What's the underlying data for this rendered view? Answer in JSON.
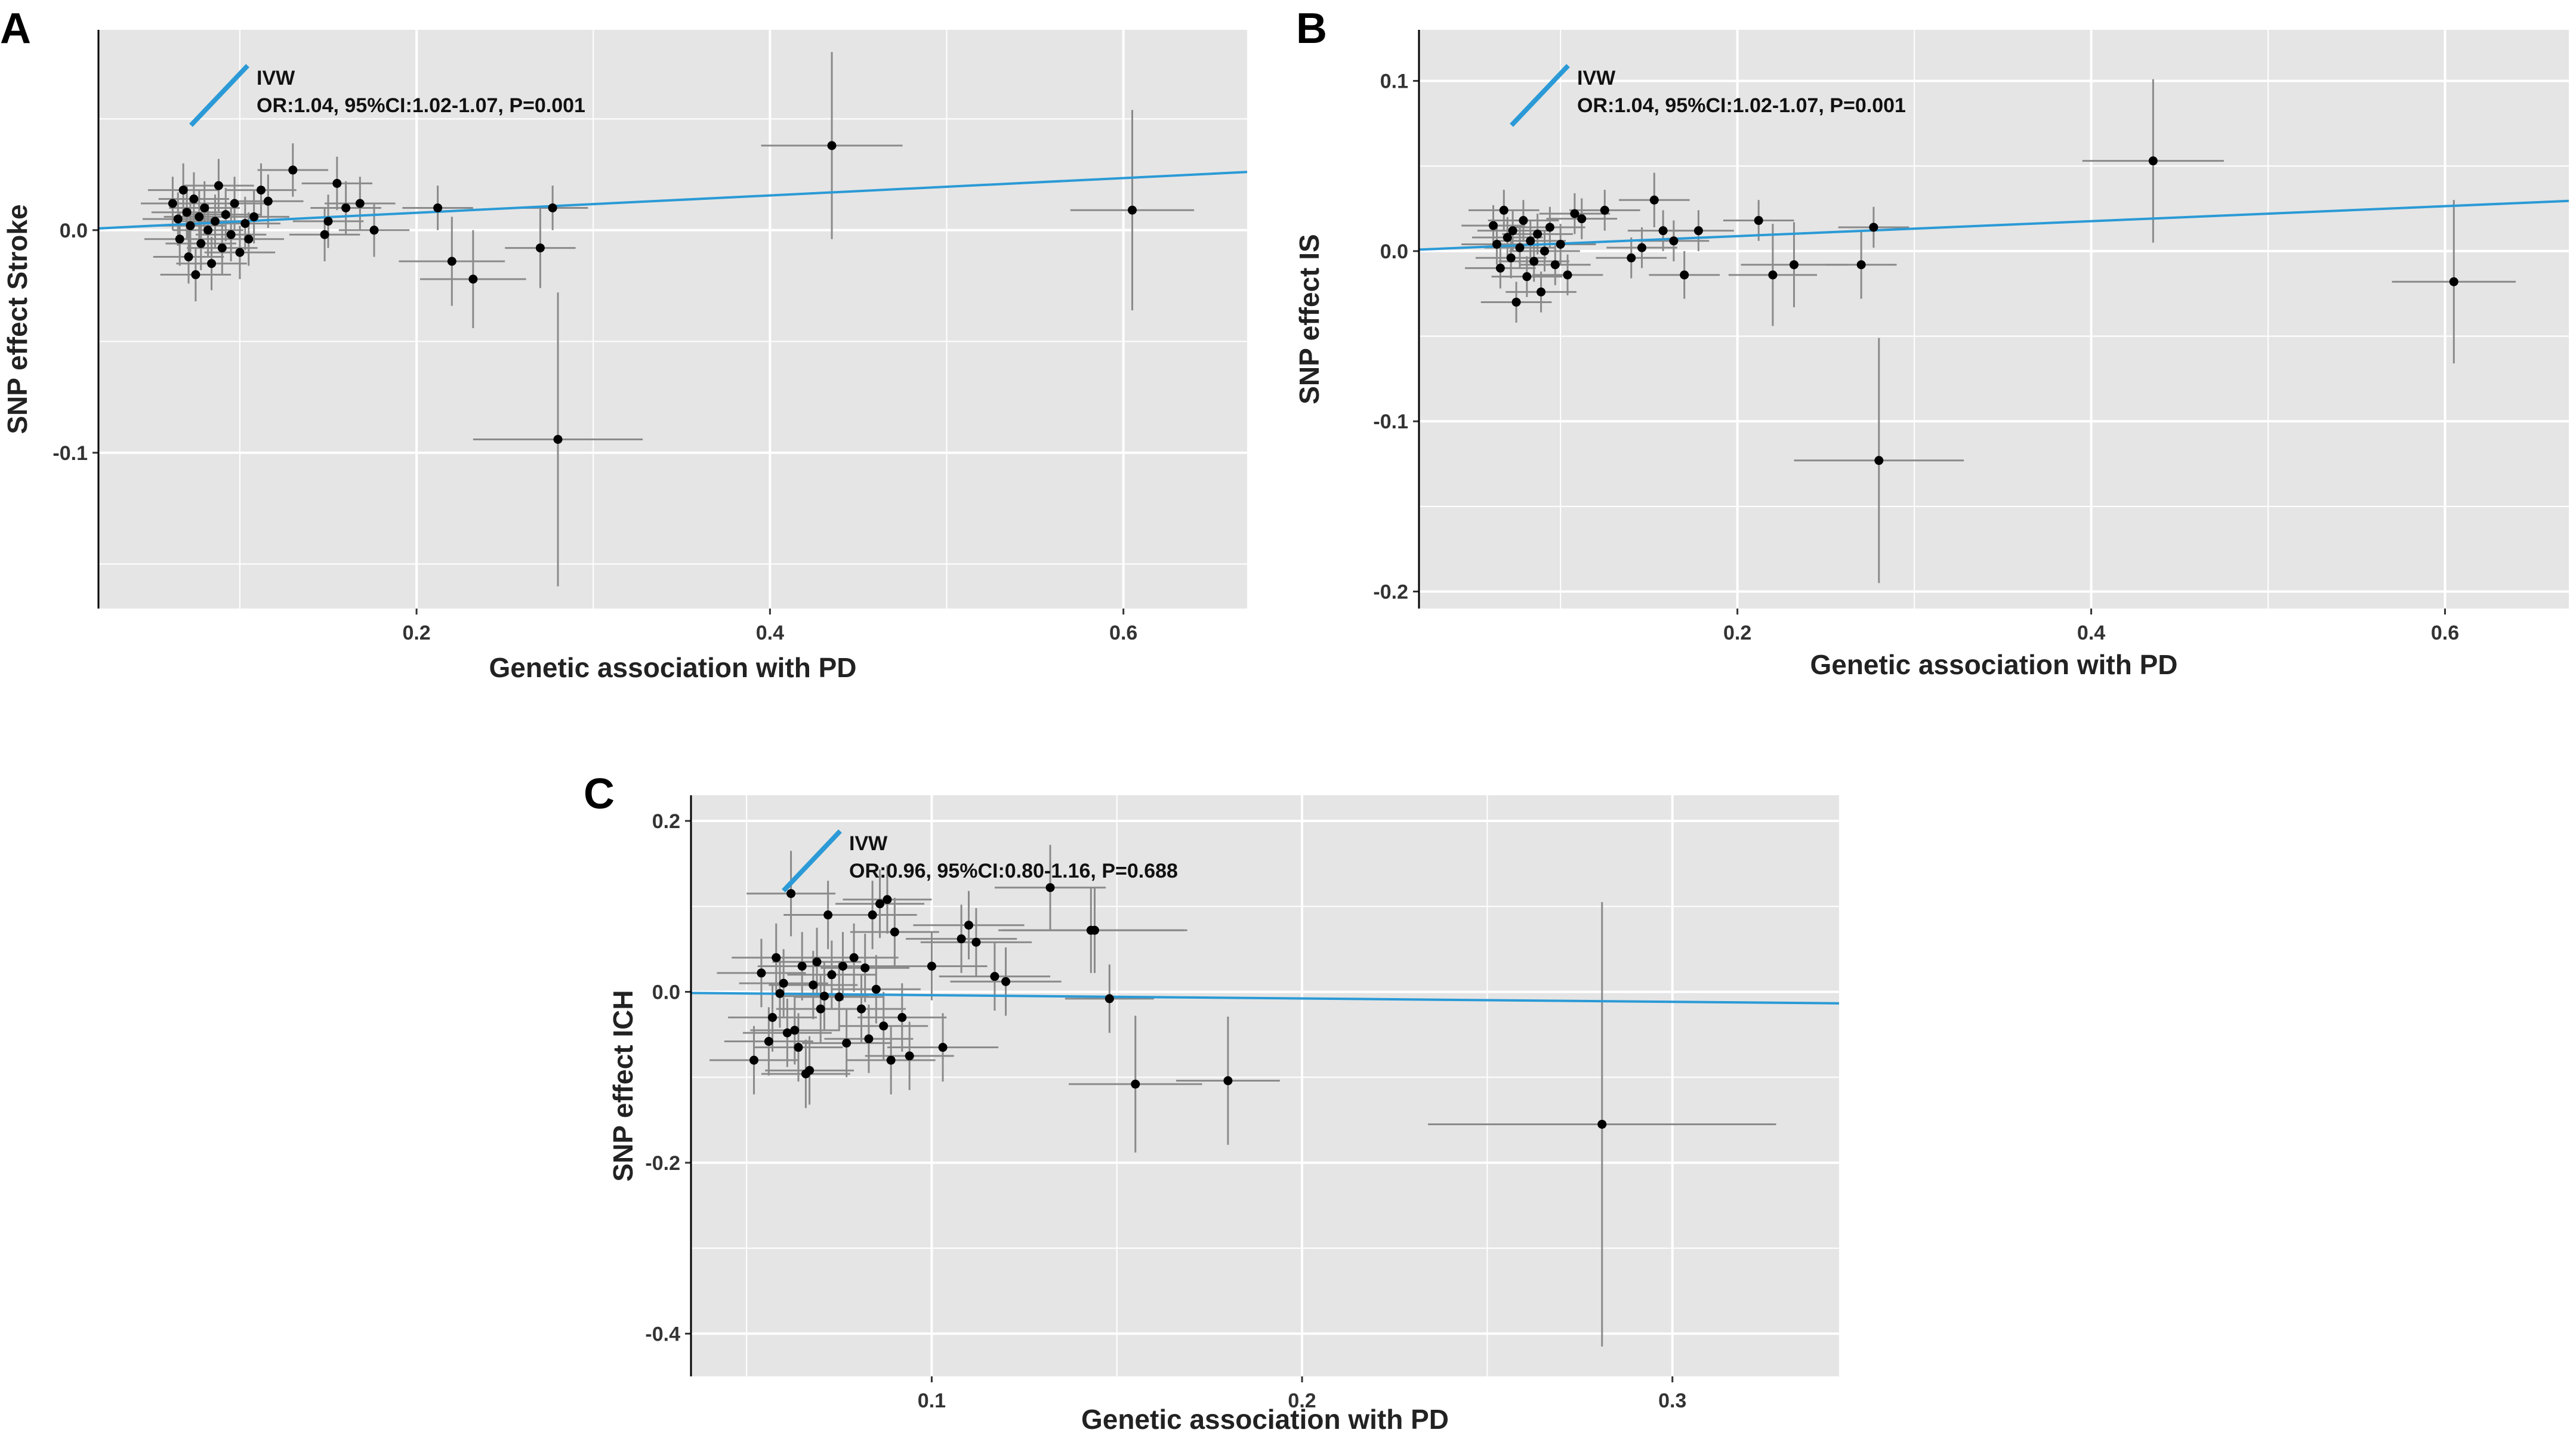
{
  "figure": {
    "panels": [
      "A",
      "B",
      "C"
    ]
  },
  "colors": {
    "panel_bg": "#e5e5e5",
    "grid": "#ffffff",
    "ivw_line": "#2b9ad6",
    "point": "#000000",
    "error_bar": "#8a8a8a"
  },
  "chart_data": [
    {
      "panel": "A",
      "type": "scatter",
      "xlabel": "Genetic association with PD",
      "ylabel": "SNP effect Stroke",
      "xlim": [
        0.02,
        0.67
      ],
      "ylim": [
        -0.17,
        0.09
      ],
      "xticks": [
        0.2,
        0.4,
        0.6
      ],
      "yticks": [
        0.0,
        -0.1
      ],
      "xtick_labels": [
        "0.2",
        "0.4",
        "0.6"
      ],
      "ytick_labels": [
        "0.0",
        "-0.1"
      ],
      "legend": {
        "method": "IVW",
        "stats": "OR:1.04, 95%CI:1.02-1.07, P=0.001"
      },
      "ivw_slope": 0.039,
      "points": [
        {
          "x": 0.062,
          "y": 0.012,
          "xe": 0.018,
          "ye": 0.012
        },
        {
          "x": 0.065,
          "y": 0.005,
          "xe": 0.02,
          "ye": 0.012
        },
        {
          "x": 0.066,
          "y": -0.004,
          "xe": 0.02,
          "ye": 0.012
        },
        {
          "x": 0.068,
          "y": 0.018,
          "xe": 0.02,
          "ye": 0.012
        },
        {
          "x": 0.07,
          "y": 0.008,
          "xe": 0.02,
          "ye": 0.012
        },
        {
          "x": 0.071,
          "y": -0.012,
          "xe": 0.02,
          "ye": 0.012
        },
        {
          "x": 0.072,
          "y": 0.002,
          "xe": 0.02,
          "ye": 0.012
        },
        {
          "x": 0.074,
          "y": 0.014,
          "xe": 0.02,
          "ye": 0.012
        },
        {
          "x": 0.075,
          "y": -0.02,
          "xe": 0.02,
          "ye": 0.012
        },
        {
          "x": 0.077,
          "y": 0.006,
          "xe": 0.02,
          "ye": 0.012
        },
        {
          "x": 0.078,
          "y": -0.006,
          "xe": 0.02,
          "ye": 0.012
        },
        {
          "x": 0.08,
          "y": 0.01,
          "xe": 0.02,
          "ye": 0.012
        },
        {
          "x": 0.082,
          "y": 0.0,
          "xe": 0.02,
          "ye": 0.012
        },
        {
          "x": 0.084,
          "y": -0.015,
          "xe": 0.02,
          "ye": 0.012
        },
        {
          "x": 0.086,
          "y": 0.004,
          "xe": 0.02,
          "ye": 0.012
        },
        {
          "x": 0.088,
          "y": 0.02,
          "xe": 0.02,
          "ye": 0.012
        },
        {
          "x": 0.09,
          "y": -0.008,
          "xe": 0.02,
          "ye": 0.012
        },
        {
          "x": 0.092,
          "y": 0.007,
          "xe": 0.02,
          "ye": 0.012
        },
        {
          "x": 0.095,
          "y": -0.002,
          "xe": 0.02,
          "ye": 0.012
        },
        {
          "x": 0.097,
          "y": 0.012,
          "xe": 0.02,
          "ye": 0.012
        },
        {
          "x": 0.1,
          "y": -0.01,
          "xe": 0.02,
          "ye": 0.012
        },
        {
          "x": 0.103,
          "y": 0.003,
          "xe": 0.02,
          "ye": 0.012
        },
        {
          "x": 0.105,
          "y": -0.004,
          "xe": 0.02,
          "ye": 0.012
        },
        {
          "x": 0.108,
          "y": 0.006,
          "xe": 0.02,
          "ye": 0.012
        },
        {
          "x": 0.112,
          "y": 0.018,
          "xe": 0.02,
          "ye": 0.012
        },
        {
          "x": 0.116,
          "y": 0.013,
          "xe": 0.02,
          "ye": 0.012
        },
        {
          "x": 0.13,
          "y": 0.027,
          "xe": 0.02,
          "ye": 0.012
        },
        {
          "x": 0.148,
          "y": -0.002,
          "xe": 0.02,
          "ye": 0.012
        },
        {
          "x": 0.15,
          "y": 0.004,
          "xe": 0.02,
          "ye": 0.012
        },
        {
          "x": 0.155,
          "y": 0.021,
          "xe": 0.02,
          "ye": 0.012
        },
        {
          "x": 0.16,
          "y": 0.01,
          "xe": 0.02,
          "ye": 0.012
        },
        {
          "x": 0.168,
          "y": 0.012,
          "xe": 0.02,
          "ye": 0.012
        },
        {
          "x": 0.176,
          "y": 0.0,
          "xe": 0.02,
          "ye": 0.012
        },
        {
          "x": 0.212,
          "y": 0.01,
          "xe": 0.02,
          "ye": 0.01
        },
        {
          "x": 0.22,
          "y": -0.014,
          "xe": 0.03,
          "ye": 0.02
        },
        {
          "x": 0.232,
          "y": -0.022,
          "xe": 0.03,
          "ye": 0.022
        },
        {
          "x": 0.27,
          "y": -0.008,
          "xe": 0.02,
          "ye": 0.018
        },
        {
          "x": 0.277,
          "y": 0.01,
          "xe": 0.02,
          "ye": 0.01
        },
        {
          "x": 0.28,
          "y": -0.094,
          "xe": 0.048,
          "ye": 0.066
        },
        {
          "x": 0.435,
          "y": 0.038,
          "xe": 0.04,
          "ye": 0.042
        },
        {
          "x": 0.605,
          "y": 0.009,
          "xe": 0.035,
          "ye": 0.045
        }
      ]
    },
    {
      "panel": "B",
      "type": "scatter",
      "xlabel": "Genetic association with PD",
      "ylabel": "SNP effect IS",
      "xlim": [
        0.02,
        0.67
      ],
      "ylim": [
        -0.21,
        0.13
      ],
      "xticks": [
        0.2,
        0.4,
        0.6
      ],
      "yticks": [
        0.1,
        0.0,
        -0.1,
        -0.2
      ],
      "xtick_labels": [
        "0.2",
        "0.4",
        "0.6"
      ],
      "ytick_labels": [
        "0.1",
        "0.0",
        "-0.1",
        "-0.2"
      ],
      "legend": {
        "method": "IVW",
        "stats": "OR:1.04, 95%CI:1.02-1.07, P=0.001"
      },
      "ivw_slope": 0.044,
      "points": [
        {
          "x": 0.062,
          "y": 0.015,
          "xe": 0.018,
          "ye": 0.012
        },
        {
          "x": 0.064,
          "y": 0.004,
          "xe": 0.02,
          "ye": 0.012
        },
        {
          "x": 0.066,
          "y": -0.01,
          "xe": 0.02,
          "ye": 0.012
        },
        {
          "x": 0.068,
          "y": 0.024,
          "xe": 0.02,
          "ye": 0.012
        },
        {
          "x": 0.07,
          "y": 0.008,
          "xe": 0.02,
          "ye": 0.012
        },
        {
          "x": 0.072,
          "y": -0.004,
          "xe": 0.02,
          "ye": 0.012
        },
        {
          "x": 0.073,
          "y": 0.012,
          "xe": 0.02,
          "ye": 0.012
        },
        {
          "x": 0.075,
          "y": -0.03,
          "xe": 0.02,
          "ye": 0.012
        },
        {
          "x": 0.077,
          "y": 0.002,
          "xe": 0.02,
          "ye": 0.012
        },
        {
          "x": 0.079,
          "y": 0.018,
          "xe": 0.02,
          "ye": 0.012
        },
        {
          "x": 0.081,
          "y": -0.015,
          "xe": 0.02,
          "ye": 0.012
        },
        {
          "x": 0.083,
          "y": 0.006,
          "xe": 0.02,
          "ye": 0.012
        },
        {
          "x": 0.085,
          "y": -0.006,
          "xe": 0.02,
          "ye": 0.012
        },
        {
          "x": 0.087,
          "y": 0.01,
          "xe": 0.02,
          "ye": 0.012
        },
        {
          "x": 0.089,
          "y": -0.024,
          "xe": 0.02,
          "ye": 0.012
        },
        {
          "x": 0.091,
          "y": 0.0,
          "xe": 0.02,
          "ye": 0.012
        },
        {
          "x": 0.094,
          "y": 0.014,
          "xe": 0.02,
          "ye": 0.012
        },
        {
          "x": 0.097,
          "y": -0.008,
          "xe": 0.02,
          "ye": 0.012
        },
        {
          "x": 0.1,
          "y": 0.004,
          "xe": 0.02,
          "ye": 0.012
        },
        {
          "x": 0.104,
          "y": -0.014,
          "xe": 0.02,
          "ye": 0.012
        },
        {
          "x": 0.108,
          "y": 0.022,
          "xe": 0.02,
          "ye": 0.012
        },
        {
          "x": 0.112,
          "y": 0.019,
          "xe": 0.02,
          "ye": 0.012
        },
        {
          "x": 0.125,
          "y": 0.024,
          "xe": 0.02,
          "ye": 0.012
        },
        {
          "x": 0.14,
          "y": -0.004,
          "xe": 0.02,
          "ye": 0.012
        },
        {
          "x": 0.146,
          "y": 0.002,
          "xe": 0.02,
          "ye": 0.012
        },
        {
          "x": 0.153,
          "y": 0.03,
          "xe": 0.02,
          "ye": 0.016
        },
        {
          "x": 0.158,
          "y": 0.012,
          "xe": 0.02,
          "ye": 0.012
        },
        {
          "x": 0.164,
          "y": 0.006,
          "xe": 0.02,
          "ye": 0.012
        },
        {
          "x": 0.17,
          "y": -0.014,
          "xe": 0.02,
          "ye": 0.014
        },
        {
          "x": 0.178,
          "y": 0.012,
          "xe": 0.02,
          "ye": 0.012
        },
        {
          "x": 0.212,
          "y": 0.018,
          "xe": 0.02,
          "ye": 0.012
        },
        {
          "x": 0.22,
          "y": -0.014,
          "xe": 0.025,
          "ye": 0.03
        },
        {
          "x": 0.232,
          "y": -0.008,
          "xe": 0.03,
          "ye": 0.025
        },
        {
          "x": 0.27,
          "y": -0.008,
          "xe": 0.02,
          "ye": 0.02
        },
        {
          "x": 0.277,
          "y": 0.014,
          "xe": 0.02,
          "ye": 0.012
        },
        {
          "x": 0.28,
          "y": -0.123,
          "xe": 0.048,
          "ye": 0.072
        },
        {
          "x": 0.435,
          "y": 0.053,
          "xe": 0.04,
          "ye": 0.048
        },
        {
          "x": 0.605,
          "y": -0.018,
          "xe": 0.035,
          "ye": 0.048
        }
      ]
    },
    {
      "panel": "C",
      "type": "scatter",
      "xlabel": "Genetic association with PD",
      "ylabel": "SNP effect ICH",
      "xlim": [
        0.035,
        0.345
      ],
      "ylim": [
        -0.45,
        0.23
      ],
      "xticks": [
        0.1,
        0.2,
        0.3
      ],
      "yticks": [
        0.2,
        0.0,
        -0.2,
        -0.4
      ],
      "xtick_labels": [
        "0.1",
        "0.2",
        "0.3"
      ],
      "ytick_labels": [
        "0.2",
        "0.0",
        "-0.2",
        "-0.4"
      ],
      "legend": {
        "method": "IVW",
        "stats": "OR:0.96, 95%CI:0.80-1.16, P=0.688"
      },
      "ivw_slope": -0.039,
      "points": [
        {
          "x": 0.052,
          "y": -0.08,
          "xe": 0.012,
          "ye": 0.04
        },
        {
          "x": 0.054,
          "y": 0.022,
          "xe": 0.012,
          "ye": 0.04
        },
        {
          "x": 0.056,
          "y": -0.058,
          "xe": 0.012,
          "ye": 0.04
        },
        {
          "x": 0.057,
          "y": -0.03,
          "xe": 0.012,
          "ye": 0.04
        },
        {
          "x": 0.058,
          "y": 0.04,
          "xe": 0.012,
          "ye": 0.04
        },
        {
          "x": 0.059,
          "y": -0.002,
          "xe": 0.012,
          "ye": 0.04
        },
        {
          "x": 0.06,
          "y": 0.01,
          "xe": 0.012,
          "ye": 0.04
        },
        {
          "x": 0.061,
          "y": -0.048,
          "xe": 0.012,
          "ye": 0.04
        },
        {
          "x": 0.062,
          "y": 0.115,
          "xe": 0.012,
          "ye": 0.05
        },
        {
          "x": 0.063,
          "y": -0.045,
          "xe": 0.012,
          "ye": 0.04
        },
        {
          "x": 0.064,
          "y": -0.065,
          "xe": 0.012,
          "ye": 0.04
        },
        {
          "x": 0.065,
          "y": 0.03,
          "xe": 0.012,
          "ye": 0.04
        },
        {
          "x": 0.066,
          "y": -0.096,
          "xe": 0.012,
          "ye": 0.04
        },
        {
          "x": 0.067,
          "y": -0.092,
          "xe": 0.012,
          "ye": 0.04
        },
        {
          "x": 0.068,
          "y": 0.008,
          "xe": 0.012,
          "ye": 0.04
        },
        {
          "x": 0.069,
          "y": 0.035,
          "xe": 0.012,
          "ye": 0.04
        },
        {
          "x": 0.07,
          "y": -0.02,
          "xe": 0.012,
          "ye": 0.04
        },
        {
          "x": 0.071,
          "y": -0.005,
          "xe": 0.012,
          "ye": 0.04
        },
        {
          "x": 0.072,
          "y": 0.09,
          "xe": 0.012,
          "ye": 0.04
        },
        {
          "x": 0.073,
          "y": 0.02,
          "xe": 0.012,
          "ye": 0.04
        },
        {
          "x": 0.075,
          "y": -0.006,
          "xe": 0.012,
          "ye": 0.04
        },
        {
          "x": 0.076,
          "y": 0.03,
          "xe": 0.012,
          "ye": 0.04
        },
        {
          "x": 0.077,
          "y": -0.06,
          "xe": 0.012,
          "ye": 0.04
        },
        {
          "x": 0.079,
          "y": 0.04,
          "xe": 0.012,
          "ye": 0.04
        },
        {
          "x": 0.081,
          "y": -0.02,
          "xe": 0.012,
          "ye": 0.04
        },
        {
          "x": 0.082,
          "y": 0.028,
          "xe": 0.012,
          "ye": 0.04
        },
        {
          "x": 0.083,
          "y": -0.055,
          "xe": 0.012,
          "ye": 0.04
        },
        {
          "x": 0.084,
          "y": 0.09,
          "xe": 0.012,
          "ye": 0.04
        },
        {
          "x": 0.085,
          "y": 0.003,
          "xe": 0.012,
          "ye": 0.04
        },
        {
          "x": 0.086,
          "y": 0.103,
          "xe": 0.012,
          "ye": 0.04
        },
        {
          "x": 0.087,
          "y": -0.04,
          "xe": 0.012,
          "ye": 0.04
        },
        {
          "x": 0.088,
          "y": 0.108,
          "xe": 0.012,
          "ye": 0.04
        },
        {
          "x": 0.089,
          "y": -0.08,
          "xe": 0.012,
          "ye": 0.04
        },
        {
          "x": 0.09,
          "y": 0.07,
          "xe": 0.012,
          "ye": 0.04
        },
        {
          "x": 0.092,
          "y": -0.03,
          "xe": 0.012,
          "ye": 0.04
        },
        {
          "x": 0.094,
          "y": -0.075,
          "xe": 0.012,
          "ye": 0.04
        },
        {
          "x": 0.1,
          "y": 0.03,
          "xe": 0.015,
          "ye": 0.04
        },
        {
          "x": 0.103,
          "y": -0.065,
          "xe": 0.015,
          "ye": 0.04
        },
        {
          "x": 0.108,
          "y": 0.062,
          "xe": 0.015,
          "ye": 0.04
        },
        {
          "x": 0.11,
          "y": 0.078,
          "xe": 0.015,
          "ye": 0.04
        },
        {
          "x": 0.112,
          "y": 0.058,
          "xe": 0.015,
          "ye": 0.04
        },
        {
          "x": 0.117,
          "y": 0.018,
          "xe": 0.015,
          "ye": 0.04
        },
        {
          "x": 0.12,
          "y": 0.012,
          "xe": 0.015,
          "ye": 0.04
        },
        {
          "x": 0.132,
          "y": 0.122,
          "xe": 0.015,
          "ye": 0.05
        },
        {
          "x": 0.143,
          "y": 0.072,
          "xe": 0.025,
          "ye": 0.05
        },
        {
          "x": 0.144,
          "y": 0.072,
          "xe": 0.025,
          "ye": 0.05
        },
        {
          "x": 0.148,
          "y": -0.008,
          "xe": 0.012,
          "ye": 0.04
        },
        {
          "x": 0.155,
          "y": -0.108,
          "xe": 0.018,
          "ye": 0.08
        },
        {
          "x": 0.18,
          "y": -0.104,
          "xe": 0.014,
          "ye": 0.075
        },
        {
          "x": 0.281,
          "y": -0.155,
          "xe": 0.047,
          "ye": 0.26
        }
      ]
    }
  ]
}
